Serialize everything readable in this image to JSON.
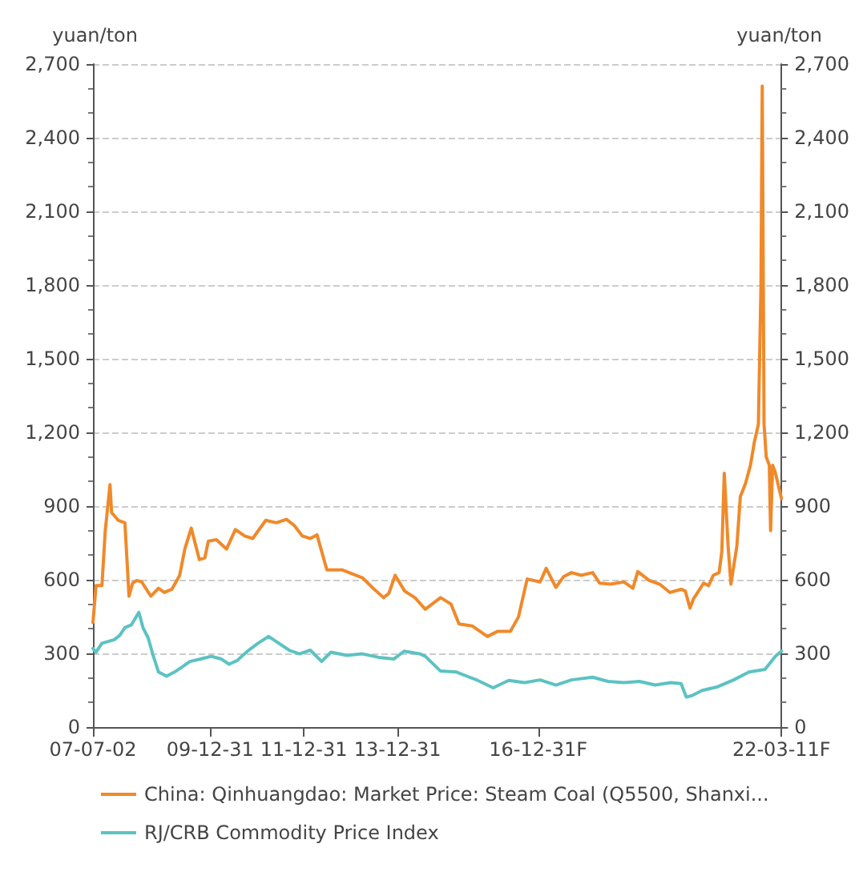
{
  "chart_data": {
    "type": "line",
    "ylabel": "yuan/ton",
    "y2label": "yuan/ton",
    "xlim": [
      "2007-07-02",
      "2022-03-11"
    ],
    "xticks": [
      {
        "value": "2007-07-02",
        "label": "07-07-02"
      },
      {
        "value": "2009-12-31",
        "label": "09-12-31"
      },
      {
        "value": "2011-12-31",
        "label": "11-12-31"
      },
      {
        "value": "2013-12-31",
        "label": "13-12-31"
      },
      {
        "value": "2016-12-31",
        "label": "16-12-31F"
      },
      {
        "value": "2022-03-11",
        "label": "22-03-11F"
      }
    ],
    "ylim": [
      0,
      2700
    ],
    "yticks": [
      0,
      {
        "value": 300,
        "label": "300"
      },
      {
        "value": 600,
        "label": "600"
      },
      {
        "value": 900,
        "label": "900"
      },
      {
        "value": 1200,
        "label": "1,200"
      },
      {
        "value": 1500,
        "label": "1,500"
      },
      {
        "value": 1800,
        "label": "1,800"
      },
      {
        "value": 2100,
        "label": "2,100"
      },
      {
        "value": 2400,
        "label": "2,400"
      },
      {
        "value": 2700,
        "label": "2,700"
      }
    ],
    "y2lim": [
      0,
      2700
    ],
    "y2ticks": [
      0,
      {
        "value": 300,
        "label": "300"
      },
      {
        "value": 600,
        "label": "600"
      },
      {
        "value": 900,
        "label": "900"
      },
      {
        "value": 1200,
        "label": "1,200"
      },
      {
        "value": 1500,
        "label": "1,500"
      },
      {
        "value": 1800,
        "label": "1,800"
      },
      {
        "value": 2100,
        "label": "2,100"
      },
      {
        "value": 2400,
        "label": "2,400"
      },
      {
        "value": 2700,
        "label": "2,700"
      }
    ],
    "grid": "y",
    "legend": "bottom",
    "marker": "none",
    "line_style": "solid",
    "series": [
      {
        "name": "China: Qinhuangdao: Market Price: Steam Coal (Q5500, Shanxi...",
        "color": "#f0892a",
        "x": [
          "2007-07-02",
          "2007-07-26",
          "2007-09-10",
          "2007-10-06",
          "2007-11-12",
          "2007-11-24",
          "2008-01-15",
          "2008-03-07",
          "2008-04-08",
          "2008-05-06",
          "2008-06-07",
          "2008-07-16",
          "2008-09-25",
          "2008-11-24",
          "2009-01-08",
          "2009-03-08",
          "2009-05-08",
          "2009-06-17",
          "2009-08-06",
          "2009-10-08",
          "2009-11-20",
          "2009-12-17",
          "2010-02-18",
          "2010-05-08",
          "2010-07-16",
          "2010-09-27",
          "2010-11-28",
          "2011-03-10",
          "2011-05-30",
          "2011-08-18",
          "2011-10-18",
          "2011-12-20",
          "2012-02-20",
          "2012-04-12",
          "2012-06-28",
          "2012-10-24",
          "2013-04-01",
          "2013-06-24",
          "2013-09-13",
          "2013-10-24",
          "2013-12-12",
          "2014-02-24",
          "2014-05-15",
          "2014-08-04",
          "2014-12-01",
          "2015-02-20",
          "2015-04-24",
          "2015-08-04",
          "2015-12-01",
          "2016-02-20",
          "2016-05-28",
          "2016-07-30",
          "2016-10-06",
          "2017-01-15",
          "2017-03-03",
          "2017-05-18",
          "2017-07-16",
          "2017-09-16",
          "2017-12-01",
          "2018-02-28",
          "2018-04-24",
          "2018-07-16",
          "2018-10-30",
          "2019-01-08",
          "2019-02-15",
          "2019-05-15",
          "2019-08-04",
          "2019-10-24",
          "2020-01-19",
          "2020-02-20",
          "2020-03-28",
          "2020-04-24",
          "2020-06-03",
          "2020-07-12",
          "2020-08-20",
          "2020-09-25",
          "2020-11-10",
          "2020-12-01",
          "2020-12-20",
          "2021-01-19",
          "2021-02-10",
          "2021-03-28",
          "2021-04-24",
          "2021-06-03",
          "2021-07-12",
          "2021-08-12",
          "2021-09-12",
          "2021-10-02",
          "2021-10-12",
          "2021-10-26",
          "2021-11-12",
          "2021-12-06",
          "2021-12-16",
          "2022-01-01",
          "2022-01-20",
          "2022-03-11"
        ],
        "values": [
          426,
          576,
          576,
          800,
          987,
          874,
          842,
          832,
          533,
          586,
          597,
          591,
          533,
          565,
          548,
          561,
          618,
          725,
          810,
          682,
          689,
          757,
          763,
          725,
          804,
          778,
          768,
          842,
          832,
          846,
          821,
          778,
          768,
          783,
          640,
          640,
          608,
          565,
          527,
          544,
          618,
          554,
          527,
          480,
          527,
          501,
          420,
          412,
          369,
          390,
          390,
          448,
          603,
          591,
          646,
          569,
          612,
          629,
          618,
          629,
          586,
          582,
          591,
          565,
          633,
          597,
          582,
          548,
          561,
          554,
          484,
          522,
          554,
          586,
          576,
          618,
          629,
          714,
          1034,
          736,
          582,
          736,
          938,
          991,
          1066,
          1162,
          1233,
          1800,
          2610,
          1233,
          1100,
          1066,
          800,
          1066,
          1040,
          930
        ]
      },
      {
        "name": "RJ/CRB Commodity Price Index",
        "color": "#5cc2c2",
        "x": [
          "2007-07-02",
          "2007-07-26",
          "2007-09-10",
          "2007-12-15",
          "2008-01-26",
          "2008-03-07",
          "2008-04-26",
          "2008-06-24",
          "2008-07-26",
          "2008-09-05",
          "2008-10-15",
          "2008-11-24",
          "2009-01-26",
          "2009-03-28",
          "2009-05-28",
          "2009-07-26",
          "2009-10-18",
          "2010-01-08",
          "2010-03-28",
          "2010-05-28",
          "2010-07-30",
          "2010-10-18",
          "2011-01-08",
          "2011-04-01",
          "2011-06-20",
          "2011-09-08",
          "2011-11-28",
          "2012-02-20",
          "2012-05-18",
          "2012-07-30",
          "2012-12-01",
          "2013-04-01",
          "2013-08-04",
          "2013-12-01",
          "2014-02-20",
          "2014-06-24",
          "2014-08-04",
          "2014-12-01",
          "2015-04-05",
          "2015-06-24",
          "2015-09-16",
          "2016-01-15",
          "2016-05-15",
          "2016-09-16",
          "2017-01-15",
          "2017-05-18",
          "2017-09-16",
          "2018-02-28",
          "2018-06-28",
          "2018-10-30",
          "2019-02-28",
          "2019-07-01",
          "2019-10-30",
          "2020-01-19",
          "2020-02-28",
          "2020-04-12",
          "2020-07-01",
          "2020-10-30",
          "2021-03-03",
          "2021-07-01",
          "2021-11-02",
          "2021-12-13",
          "2022-01-22",
          "2022-02-17",
          "2022-03-11"
        ],
        "values": [
          320,
          305,
          341,
          356,
          373,
          405,
          416,
          467,
          405,
          362,
          288,
          224,
          207,
          224,
          245,
          267,
          277,
          288,
          277,
          256,
          271,
          309,
          341,
          369,
          341,
          313,
          298,
          313,
          267,
          305,
          292,
          298,
          284,
          277,
          309,
          298,
          288,
          228,
          224,
          207,
          190,
          160,
          190,
          181,
          192,
          171,
          192,
          203,
          186,
          181,
          186,
          171,
          181,
          177,
          122,
          128,
          149,
          164,
          192,
          224,
          235,
          262,
          288,
          300,
          309
        ]
      }
    ]
  }
}
